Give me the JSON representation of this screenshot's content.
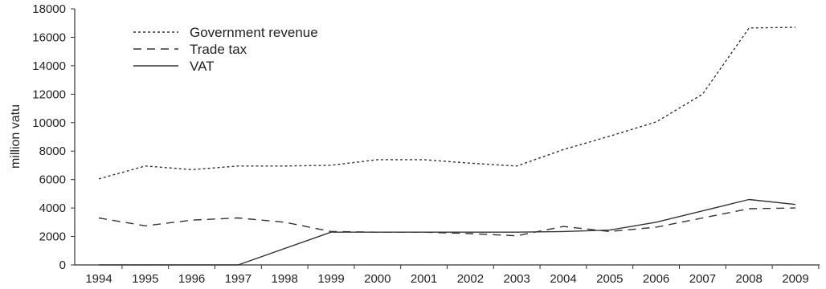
{
  "chart_data": {
    "type": "line",
    "title": "",
    "xlabel": "",
    "ylabel": "million vatu",
    "x": [
      1994,
      1995,
      1996,
      1997,
      1998,
      1999,
      2000,
      2001,
      2002,
      2003,
      2004,
      2005,
      2006,
      2007,
      2008,
      2009
    ],
    "xlim": [
      1994,
      2009
    ],
    "ylim": [
      0,
      18000
    ],
    "yticks": [
      0,
      2000,
      4000,
      6000,
      8000,
      10000,
      12000,
      14000,
      16000,
      18000
    ],
    "grid": false,
    "legend_position": "top-left",
    "series": [
      {
        "name": "Government revenue",
        "style": "dotted",
        "points": [
          [
            1994,
            6050
          ],
          [
            1995,
            6950
          ],
          [
            1996,
            6700
          ],
          [
            1997,
            6950
          ],
          [
            1998,
            6950
          ],
          [
            1999,
            7000
          ],
          [
            2000,
            7400
          ],
          [
            2001,
            7400
          ],
          [
            2002,
            7150
          ],
          [
            2003,
            6950
          ],
          [
            2004,
            8100
          ],
          [
            2005,
            9050
          ],
          [
            2006,
            10050
          ],
          [
            2007,
            12000
          ],
          [
            2008,
            16650
          ],
          [
            2009,
            16700
          ]
        ]
      },
      {
        "name": "Trade tax",
        "style": "dashed",
        "points": [
          [
            1994,
            3300
          ],
          [
            1995,
            2750
          ],
          [
            1996,
            3150
          ],
          [
            1997,
            3300
          ],
          [
            1998,
            3000
          ],
          [
            1999,
            2350
          ],
          [
            2000,
            2300
          ],
          [
            2001,
            2300
          ],
          [
            2002,
            2200
          ],
          [
            2003,
            2050
          ],
          [
            2004,
            2700
          ],
          [
            2005,
            2350
          ],
          [
            2006,
            2650
          ],
          [
            2007,
            3300
          ],
          [
            2008,
            3950
          ],
          [
            2009,
            4000
          ]
        ]
      },
      {
        "name": "VAT",
        "style": "solid",
        "points": [
          [
            1994,
            0
          ],
          [
            1995,
            0
          ],
          [
            1996,
            0
          ],
          [
            1997,
            0
          ],
          [
            1999,
            2300
          ],
          [
            2000,
            2300
          ],
          [
            2001,
            2300
          ],
          [
            2002,
            2300
          ],
          [
            2003,
            2300
          ],
          [
            2004,
            2350
          ],
          [
            2005,
            2450
          ],
          [
            2006,
            3000
          ],
          [
            2007,
            3800
          ],
          [
            2008,
            4600
          ],
          [
            2009,
            4250
          ]
        ]
      }
    ]
  }
}
